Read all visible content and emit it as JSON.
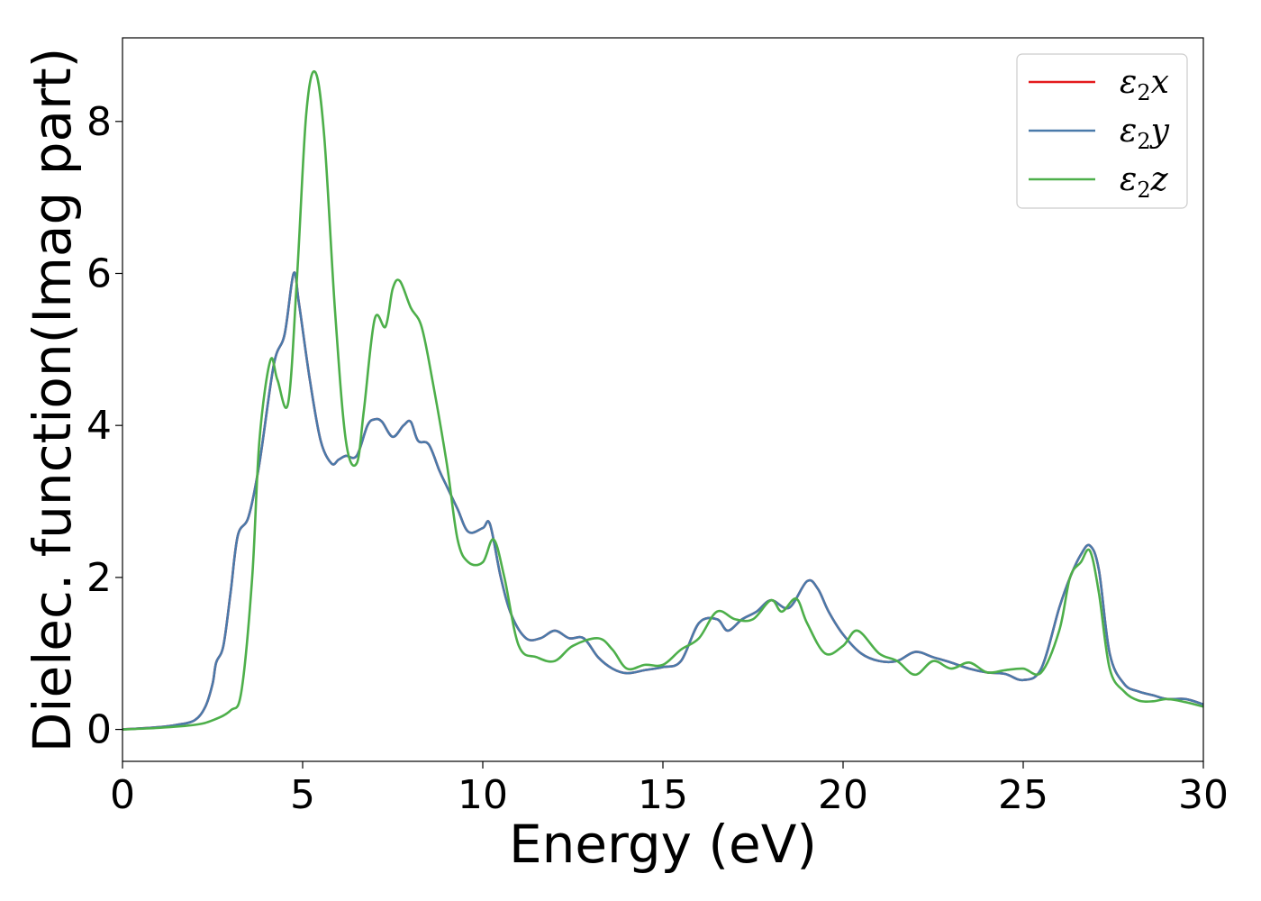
{
  "chart_data": {
    "type": "line",
    "title": "",
    "xlabel": "Energy (eV)",
    "ylabel": "Dielec. function(Imag part)",
    "xlim": [
      0,
      30
    ],
    "ylim": [
      -0.42,
      9.1
    ],
    "xticks": [
      0,
      5,
      10,
      15,
      20,
      25,
      30
    ],
    "yticks": [
      0,
      2,
      4,
      6,
      8
    ],
    "grid": false,
    "legend_position": "top-right",
    "series": [
      {
        "name": "ε2x",
        "legend_symbol": "ε",
        "legend_subscript": "2",
        "legend_suffix": "x",
        "color": "#e41a1c",
        "x": [
          0,
          1,
          1.5,
          2,
          2.3,
          2.5,
          2.6,
          2.8,
          3,
          3.2,
          3.5,
          3.8,
          4.2,
          4.5,
          4.75,
          4.9,
          5.2,
          5.5,
          5.8,
          6,
          6.2,
          6.5,
          6.8,
          7,
          7.2,
          7.5,
          7.8,
          8,
          8.2,
          8.5,
          8.8,
          9,
          9.3,
          9.6,
          10,
          10.2,
          10.5,
          10.8,
          11.2,
          11.6,
          12,
          12.4,
          12.8,
          13.2,
          13.6,
          14,
          14.5,
          15,
          15.5,
          16,
          16.5,
          16.8,
          17.2,
          17.6,
          18,
          18.5,
          19,
          19.3,
          19.6,
          20,
          20.5,
          21,
          21.5,
          22,
          22.5,
          23,
          23.5,
          24,
          24.5,
          25,
          25.5,
          26,
          26.3,
          26.6,
          26.85,
          27.1,
          27.4,
          27.8,
          28.2,
          28.6,
          29,
          29.5,
          30
        ],
        "y": [
          0,
          0.03,
          0.06,
          0.12,
          0.3,
          0.6,
          0.88,
          1.1,
          1.8,
          2.55,
          2.8,
          3.5,
          4.8,
          5.2,
          6.0,
          5.6,
          4.6,
          3.8,
          3.5,
          3.55,
          3.6,
          3.6,
          4.0,
          4.08,
          4.05,
          3.85,
          4.0,
          4.05,
          3.8,
          3.75,
          3.4,
          3.2,
          2.9,
          2.6,
          2.65,
          2.7,
          2.0,
          1.5,
          1.2,
          1.2,
          1.3,
          1.2,
          1.2,
          0.95,
          0.8,
          0.74,
          0.78,
          0.82,
          0.9,
          1.4,
          1.45,
          1.3,
          1.45,
          1.55,
          1.7,
          1.6,
          1.95,
          1.85,
          1.55,
          1.25,
          1.0,
          0.9,
          0.9,
          1.02,
          0.95,
          0.88,
          0.8,
          0.75,
          0.73,
          0.65,
          0.8,
          1.6,
          2.0,
          2.3,
          2.42,
          2.1,
          1.0,
          0.6,
          0.5,
          0.45,
          0.4,
          0.4,
          0.33
        ]
      },
      {
        "name": "ε2y",
        "legend_symbol": "ε",
        "legend_subscript": "2",
        "legend_suffix": "y",
        "color": "#4a7aaa",
        "x": [
          0,
          1,
          1.5,
          2,
          2.3,
          2.5,
          2.6,
          2.8,
          3,
          3.2,
          3.5,
          3.8,
          4.2,
          4.5,
          4.75,
          4.9,
          5.2,
          5.5,
          5.8,
          6,
          6.2,
          6.5,
          6.8,
          7,
          7.2,
          7.5,
          7.8,
          8,
          8.2,
          8.5,
          8.8,
          9,
          9.3,
          9.6,
          10,
          10.2,
          10.5,
          10.8,
          11.2,
          11.6,
          12,
          12.4,
          12.8,
          13.2,
          13.6,
          14,
          14.5,
          15,
          15.5,
          16,
          16.5,
          16.8,
          17.2,
          17.6,
          18,
          18.5,
          19,
          19.3,
          19.6,
          20,
          20.5,
          21,
          21.5,
          22,
          22.5,
          23,
          23.5,
          24,
          24.5,
          25,
          25.5,
          26,
          26.3,
          26.6,
          26.85,
          27.1,
          27.4,
          27.8,
          28.2,
          28.6,
          29,
          29.5,
          30
        ],
        "y": [
          0,
          0.03,
          0.06,
          0.12,
          0.3,
          0.6,
          0.88,
          1.1,
          1.8,
          2.55,
          2.8,
          3.5,
          4.8,
          5.2,
          6.0,
          5.6,
          4.6,
          3.8,
          3.5,
          3.55,
          3.6,
          3.6,
          4.0,
          4.08,
          4.05,
          3.85,
          4.0,
          4.05,
          3.8,
          3.75,
          3.4,
          3.2,
          2.9,
          2.6,
          2.65,
          2.7,
          2.0,
          1.5,
          1.2,
          1.2,
          1.3,
          1.2,
          1.2,
          0.95,
          0.8,
          0.74,
          0.78,
          0.82,
          0.9,
          1.4,
          1.45,
          1.3,
          1.45,
          1.55,
          1.7,
          1.6,
          1.95,
          1.85,
          1.55,
          1.25,
          1.0,
          0.9,
          0.9,
          1.02,
          0.95,
          0.88,
          0.8,
          0.75,
          0.73,
          0.65,
          0.8,
          1.6,
          2.0,
          2.3,
          2.42,
          2.1,
          1.0,
          0.6,
          0.5,
          0.45,
          0.4,
          0.4,
          0.33
        ]
      },
      {
        "name": "ε2z",
        "legend_symbol": "ε",
        "legend_subscript": "2",
        "legend_suffix": "z",
        "color": "#4daf4a",
        "x": [
          0,
          1,
          2,
          2.5,
          3,
          3.3,
          3.6,
          3.8,
          4.1,
          4.3,
          4.6,
          4.85,
          5.1,
          5.35,
          5.6,
          5.9,
          6.2,
          6.5,
          6.7,
          7,
          7.3,
          7.5,
          7.7,
          8,
          8.3,
          8.6,
          9,
          9.3,
          9.6,
          10,
          10.3,
          10.6,
          11,
          11.5,
          12,
          12.5,
          13.2,
          13.6,
          14,
          14.5,
          15,
          15.5,
          16,
          16.5,
          17,
          17.5,
          18,
          18.3,
          18.7,
          19,
          19.5,
          20,
          20.4,
          21,
          21.5,
          22,
          22.5,
          23,
          23.5,
          24,
          24.5,
          25,
          25.5,
          26,
          26.3,
          26.6,
          26.85,
          27.1,
          27.4,
          27.8,
          28.2,
          28.6,
          29,
          29.5,
          30
        ],
        "y": [
          0,
          0.02,
          0.06,
          0.12,
          0.25,
          0.5,
          2.0,
          3.8,
          4.85,
          4.6,
          4.3,
          6.0,
          8.1,
          8.65,
          7.8,
          5.5,
          3.8,
          3.5,
          4.2,
          5.4,
          5.3,
          5.8,
          5.9,
          5.55,
          5.3,
          4.6,
          3.5,
          2.5,
          2.2,
          2.2,
          2.5,
          2.0,
          1.1,
          0.95,
          0.9,
          1.1,
          1.2,
          1.05,
          0.8,
          0.85,
          0.85,
          1.05,
          1.2,
          1.55,
          1.45,
          1.45,
          1.7,
          1.55,
          1.72,
          1.4,
          1.0,
          1.1,
          1.3,
          1.0,
          0.9,
          0.72,
          0.9,
          0.8,
          0.88,
          0.75,
          0.78,
          0.8,
          0.75,
          1.3,
          2.0,
          2.2,
          2.35,
          1.8,
          0.8,
          0.5,
          0.38,
          0.37,
          0.4,
          0.36,
          0.3
        ]
      }
    ]
  }
}
